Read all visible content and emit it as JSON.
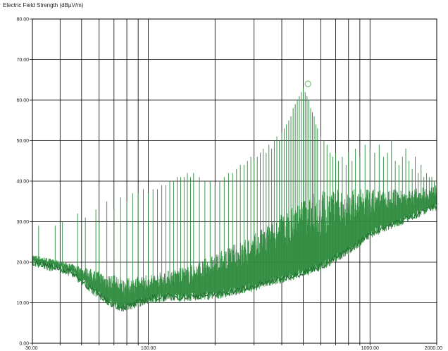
{
  "chart_data": {
    "type": "line",
    "title": "Electric Field Strength (dBµV/m)",
    "xlabel": "",
    "ylabel": "",
    "x_scale": "log",
    "xlim": [
      30,
      2000
    ],
    "ylim": [
      0,
      80
    ],
    "grid": true,
    "y_ticks": [
      {
        "value": 0,
        "label": "0.00"
      },
      {
        "value": 10,
        "label": "10.00"
      },
      {
        "value": 20,
        "label": "20.00"
      },
      {
        "value": 30,
        "label": "30.00"
      },
      {
        "value": 40,
        "label": "40.00"
      },
      {
        "value": 50,
        "label": "50.00"
      },
      {
        "value": 60,
        "label": "60.00"
      },
      {
        "value": 70,
        "label": "70.00"
      },
      {
        "value": 80,
        "label": "80.00"
      }
    ],
    "x_ticks": [
      {
        "value": 30,
        "label": "30.00"
      },
      {
        "value": 100,
        "label": "100.00"
      },
      {
        "value": 1000,
        "label": "1000.00"
      },
      {
        "value": 2000,
        "label": "2000.00"
      }
    ],
    "x_gridlines": [
      30,
      40,
      50,
      60,
      70,
      80,
      90,
      100,
      200,
      300,
      400,
      500,
      600,
      700,
      800,
      900,
      1000,
      2000
    ],
    "series": [
      {
        "color": "#2e8b3e",
        "floor": [
          [
            30,
            20
          ],
          [
            33,
            19.5
          ],
          [
            36,
            19
          ],
          [
            40,
            18.5
          ],
          [
            45,
            17.5
          ],
          [
            50,
            15.5
          ],
          [
            55,
            13.5
          ],
          [
            60,
            12
          ],
          [
            65,
            10.5
          ],
          [
            70,
            9.5
          ],
          [
            75,
            9
          ],
          [
            80,
            9
          ],
          [
            90,
            10
          ],
          [
            100,
            11
          ],
          [
            120,
            11.5
          ],
          [
            150,
            11.5
          ],
          [
            200,
            12
          ],
          [
            250,
            13
          ],
          [
            300,
            14
          ],
          [
            400,
            16
          ],
          [
            500,
            17.5
          ],
          [
            600,
            19
          ],
          [
            700,
            21
          ],
          [
            800,
            23
          ],
          [
            900,
            25
          ],
          [
            1000,
            27
          ],
          [
            1200,
            29
          ],
          [
            1500,
            31
          ],
          [
            1800,
            33
          ],
          [
            2000,
            34
          ]
        ],
        "envelope": [
          [
            30,
            22
          ],
          [
            50,
            19
          ],
          [
            80,
            16
          ],
          [
            100,
            17
          ],
          [
            150,
            19
          ],
          [
            200,
            22
          ],
          [
            300,
            27
          ],
          [
            400,
            32
          ],
          [
            500,
            36
          ],
          [
            600,
            38
          ],
          [
            800,
            38
          ],
          [
            1000,
            38
          ],
          [
            1500,
            38
          ],
          [
            2000,
            39
          ]
        ],
        "peaks": [
          [
            32,
            29
          ],
          [
            38,
            29
          ],
          [
            41,
            30
          ],
          [
            48,
            32
          ],
          [
            52,
            31
          ],
          [
            58,
            33
          ],
          [
            60,
            30
          ],
          [
            65,
            35
          ],
          [
            70,
            33
          ],
          [
            75,
            36
          ],
          [
            80,
            35
          ],
          [
            85,
            37
          ],
          [
            90,
            37
          ],
          [
            95,
            38
          ],
          [
            100,
            37
          ],
          [
            105,
            38
          ],
          [
            110,
            38
          ],
          [
            115,
            39
          ],
          [
            120,
            39
          ],
          [
            125,
            40
          ],
          [
            130,
            40
          ],
          [
            135,
            41
          ],
          [
            140,
            41
          ],
          [
            145,
            41
          ],
          [
            150,
            42
          ],
          [
            155,
            41
          ],
          [
            160,
            42
          ],
          [
            170,
            41
          ],
          [
            180,
            40
          ],
          [
            190,
            40
          ],
          [
            200,
            39
          ],
          [
            210,
            40
          ],
          [
            220,
            41
          ],
          [
            230,
            42
          ],
          [
            240,
            42
          ],
          [
            250,
            43
          ],
          [
            260,
            44
          ],
          [
            270,
            44
          ],
          [
            280,
            45
          ],
          [
            290,
            46
          ],
          [
            300,
            45
          ],
          [
            310,
            46
          ],
          [
            320,
            47
          ],
          [
            330,
            48
          ],
          [
            340,
            47
          ],
          [
            350,
            49
          ],
          [
            360,
            48
          ],
          [
            370,
            50
          ],
          [
            380,
            51
          ],
          [
            390,
            50
          ],
          [
            400,
            52
          ],
          [
            410,
            53
          ],
          [
            420,
            54
          ],
          [
            430,
            55
          ],
          [
            440,
            56
          ],
          [
            450,
            58
          ],
          [
            460,
            59
          ],
          [
            470,
            60
          ],
          [
            480,
            61
          ],
          [
            490,
            62
          ],
          [
            500,
            63
          ],
          [
            510,
            62
          ],
          [
            520,
            61
          ],
          [
            530,
            60
          ],
          [
            540,
            58
          ],
          [
            550,
            57
          ],
          [
            560,
            56
          ],
          [
            570,
            54
          ],
          [
            580,
            53
          ],
          [
            600,
            51
          ],
          [
            620,
            50
          ],
          [
            640,
            49
          ],
          [
            660,
            47
          ],
          [
            680,
            46
          ],
          [
            700,
            47
          ],
          [
            720,
            45
          ],
          [
            750,
            46
          ],
          [
            780,
            44
          ],
          [
            800,
            47
          ],
          [
            830,
            45
          ],
          [
            860,
            48
          ],
          [
            900,
            46
          ],
          [
            950,
            49
          ],
          [
            1000,
            48
          ],
          [
            1050,
            47
          ],
          [
            1100,
            49
          ],
          [
            1150,
            46
          ],
          [
            1200,
            47
          ],
          [
            1250,
            50
          ],
          [
            1300,
            45
          ],
          [
            1350,
            44
          ],
          [
            1400,
            46
          ],
          [
            1450,
            48
          ],
          [
            1500,
            45
          ],
          [
            1550,
            43
          ],
          [
            1600,
            46
          ],
          [
            1650,
            42
          ],
          [
            1700,
            44
          ],
          [
            1750,
            41
          ],
          [
            1800,
            42
          ],
          [
            1850,
            41
          ],
          [
            1900,
            41
          ],
          [
            1950,
            40
          ],
          [
            2000,
            40
          ]
        ]
      }
    ],
    "marker": {
      "x": 525,
      "y": 64,
      "shape": "circle"
    }
  }
}
